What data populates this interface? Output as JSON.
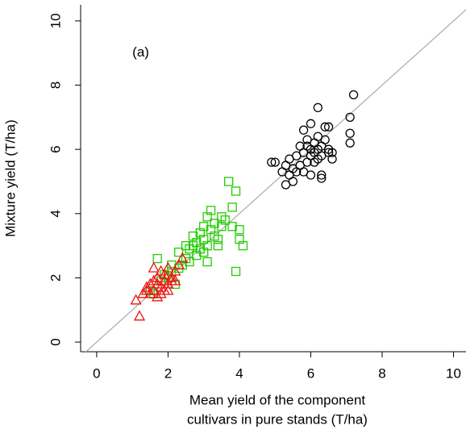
{
  "chart_data": {
    "type": "scatter",
    "annotation": "(a)",
    "annotation_x": 1.0,
    "annotation_y": 9.0,
    "xlabel": [
      "Mean yield of the component",
      "cultivars in pure stands (T/ha)"
    ],
    "ylabel": "Mixture yield (T/ha)",
    "xlim": [
      -0.45,
      10.35
    ],
    "ylim": [
      -0.3,
      10.5
    ],
    "xticks": [
      0,
      2,
      4,
      6,
      8,
      10
    ],
    "yticks": [
      0,
      2,
      4,
      6,
      8,
      10
    ],
    "reference_line": true,
    "series": [
      {
        "marker": "circle",
        "color": "#000000",
        "x": [
          5.0,
          5.2,
          5.3,
          5.4,
          5.4,
          5.5,
          5.5,
          5.6,
          5.6,
          5.7,
          5.7,
          5.8,
          5.8,
          5.8,
          5.9,
          5.9,
          6.0,
          6.0,
          6.0,
          6.0,
          6.1,
          6.1,
          6.1,
          6.2,
          6.2,
          6.2,
          6.3,
          6.3,
          6.3,
          6.3,
          6.4,
          6.4,
          6.5,
          6.5,
          6.5,
          6.6,
          6.6,
          7.1,
          7.1,
          7.1,
          7.2,
          4.9,
          5.3,
          5.9,
          6.2
        ],
        "values": [
          5.6,
          5.3,
          5.5,
          5.2,
          5.7,
          5.0,
          5.4,
          5.3,
          5.8,
          5.5,
          6.1,
          5.9,
          5.3,
          6.6,
          5.6,
          6.3,
          5.8,
          6.0,
          6.8,
          5.2,
          5.9,
          6.2,
          5.6,
          7.3,
          6.0,
          6.4,
          5.8,
          6.1,
          5.2,
          5.1,
          6.3,
          6.7,
          6.0,
          5.9,
          6.7,
          5.7,
          5.9,
          6.2,
          6.5,
          7.0,
          7.7,
          5.6,
          4.9,
          6.1,
          5.7
        ]
      },
      {
        "marker": "square",
        "color": "#22cc00",
        "x": [
          1.5,
          1.6,
          1.7,
          1.8,
          1.9,
          2.0,
          2.1,
          2.2,
          2.3,
          2.3,
          2.4,
          2.5,
          2.6,
          2.6,
          2.7,
          2.7,
          2.8,
          2.8,
          2.9,
          2.9,
          3.0,
          3.0,
          3.0,
          3.1,
          3.1,
          3.1,
          3.2,
          3.2,
          3.3,
          3.3,
          3.4,
          3.4,
          3.5,
          3.5,
          3.6,
          3.7,
          3.8,
          3.8,
          3.9,
          3.9,
          4.0,
          4.1,
          4.0,
          2.1,
          2.5
        ],
        "values": [
          1.6,
          1.5,
          2.6,
          1.9,
          2.1,
          2.0,
          2.2,
          1.8,
          2.3,
          2.8,
          2.4,
          2.6,
          2.9,
          2.5,
          3.3,
          3.0,
          3.1,
          2.7,
          3.4,
          2.9,
          3.2,
          2.8,
          3.6,
          3.0,
          3.9,
          2.5,
          3.5,
          4.1,
          3.3,
          3.7,
          3.2,
          3.0,
          3.6,
          3.9,
          3.8,
          5.0,
          4.2,
          3.6,
          2.2,
          4.7,
          3.2,
          3.0,
          3.5,
          2.4,
          3.0
        ]
      },
      {
        "marker": "triangle",
        "color": "#ee1111",
        "x": [
          1.1,
          1.2,
          1.3,
          1.4,
          1.4,
          1.5,
          1.5,
          1.6,
          1.6,
          1.6,
          1.7,
          1.7,
          1.8,
          1.8,
          1.8,
          1.9,
          1.9,
          2.0,
          2.0,
          2.0,
          2.1,
          2.1,
          2.2,
          2.3,
          2.4,
          1.7,
          1.9,
          2.2
        ],
        "values": [
          1.3,
          0.8,
          1.5,
          1.6,
          1.7,
          1.8,
          1.5,
          1.9,
          2.3,
          1.6,
          1.4,
          2.0,
          1.7,
          2.2,
          1.5,
          1.9,
          2.1,
          1.8,
          2.3,
          1.6,
          2.0,
          1.9,
          2.2,
          2.4,
          2.6,
          1.8,
          1.6,
          1.9
        ]
      }
    ]
  }
}
